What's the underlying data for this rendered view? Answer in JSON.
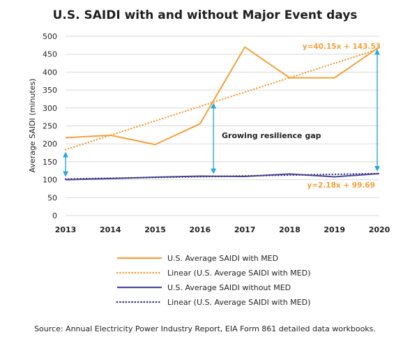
{
  "chart_data": {
    "type": "line",
    "title": "U.S. SAIDI with and without Major Event days",
    "ylabel": "Average SAIDI (minutes)",
    "xlabel": "",
    "ylim": [
      0,
      500
    ],
    "yticks": [
      0,
      50,
      100,
      150,
      200,
      250,
      300,
      350,
      400,
      450,
      500
    ],
    "x": [
      2013,
      2014,
      2015,
      2016,
      2017,
      2018,
      2019,
      2020
    ],
    "grid": "horizontal",
    "series": [
      {
        "name": "U.S. Average SAIDI with MED",
        "style": "solid",
        "color": "#f5a03a",
        "values": [
          217,
          224,
          198,
          256,
          470,
          384,
          384,
          470
        ]
      },
      {
        "name": "Linear (U.S. Average SAIDI with MED)",
        "style": "dotted",
        "color": "#f5a03a",
        "trend": {
          "slope": 40.15,
          "intercept": 143.53
        }
      },
      {
        "name": "U.S. Average SAIDI without MED",
        "style": "solid",
        "color": "#4b4a9a",
        "values": [
          100,
          103,
          107,
          110,
          109,
          116,
          108,
          117
        ]
      },
      {
        "name": "Linear (U.S. Average SAIDI with MED)",
        "style": "dotted",
        "color": "#3b3b7a",
        "trend": {
          "slope": 2.18,
          "intercept": 99.69
        }
      }
    ],
    "annotations": {
      "gap_label": "Growing resilience gap",
      "eq_with": "y=40.15x + 143.53",
      "eq_without": "y=2.18x + 99.69",
      "arrows_at": [
        2013,
        2016.3,
        2020
      ]
    },
    "arrow_color": "#29a8df",
    "legend_placement": "bottom",
    "source": "Source: Annual Electricity Power Industry Report, EIA Form 861 detailed data workbooks."
  }
}
